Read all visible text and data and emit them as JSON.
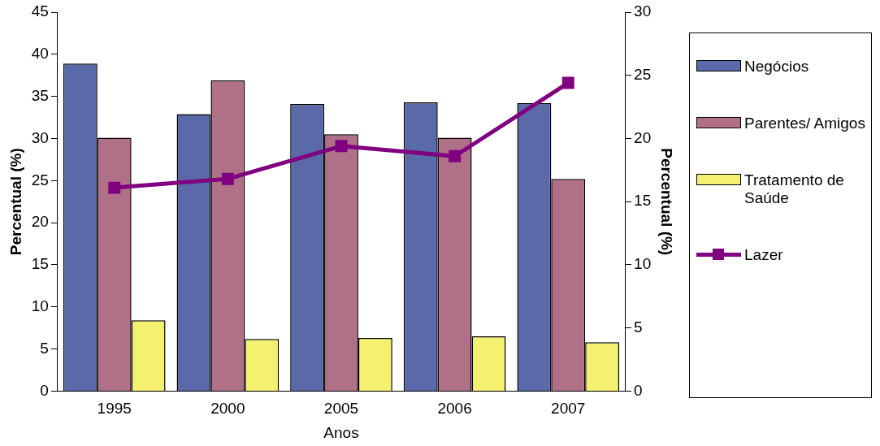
{
  "chart_data": {
    "type": "bar",
    "xlabel": "Anos",
    "ylabel": "Percentual (%)",
    "y2label": "Percentual (%)",
    "categories": [
      "1995",
      "2000",
      "2005",
      "2006",
      "2007"
    ],
    "series": [
      {
        "name": "Negócios",
        "color": "#5a6aa8",
        "values": [
          38.9,
          32.9,
          34.1,
          34.3,
          34.2
        ]
      },
      {
        "name": "Parentes/ Amigos",
        "color": "#b07088",
        "values": [
          30.1,
          36.9,
          30.5,
          30.1,
          25.2
        ]
      },
      {
        "name": "Tratamento de Saúde",
        "color": "#f4f070",
        "values": [
          8.4,
          6.2,
          6.3,
          6.5,
          5.8
        ]
      },
      {
        "name": "Lazer",
        "type": "line",
        "axis": "y2",
        "color": "#800080",
        "values": [
          16.1,
          16.8,
          19.4,
          18.6,
          24.4
        ]
      }
    ],
    "ylim": [
      0,
      45
    ],
    "yticks": [
      0,
      5,
      10,
      15,
      20,
      25,
      30,
      35,
      40,
      45
    ],
    "y2lim": [
      0,
      30
    ],
    "y2ticks": [
      0,
      5,
      10,
      15,
      20,
      25,
      30
    ],
    "grid": false,
    "legend": "right",
    "marker": "square",
    "line_style": "solid"
  }
}
